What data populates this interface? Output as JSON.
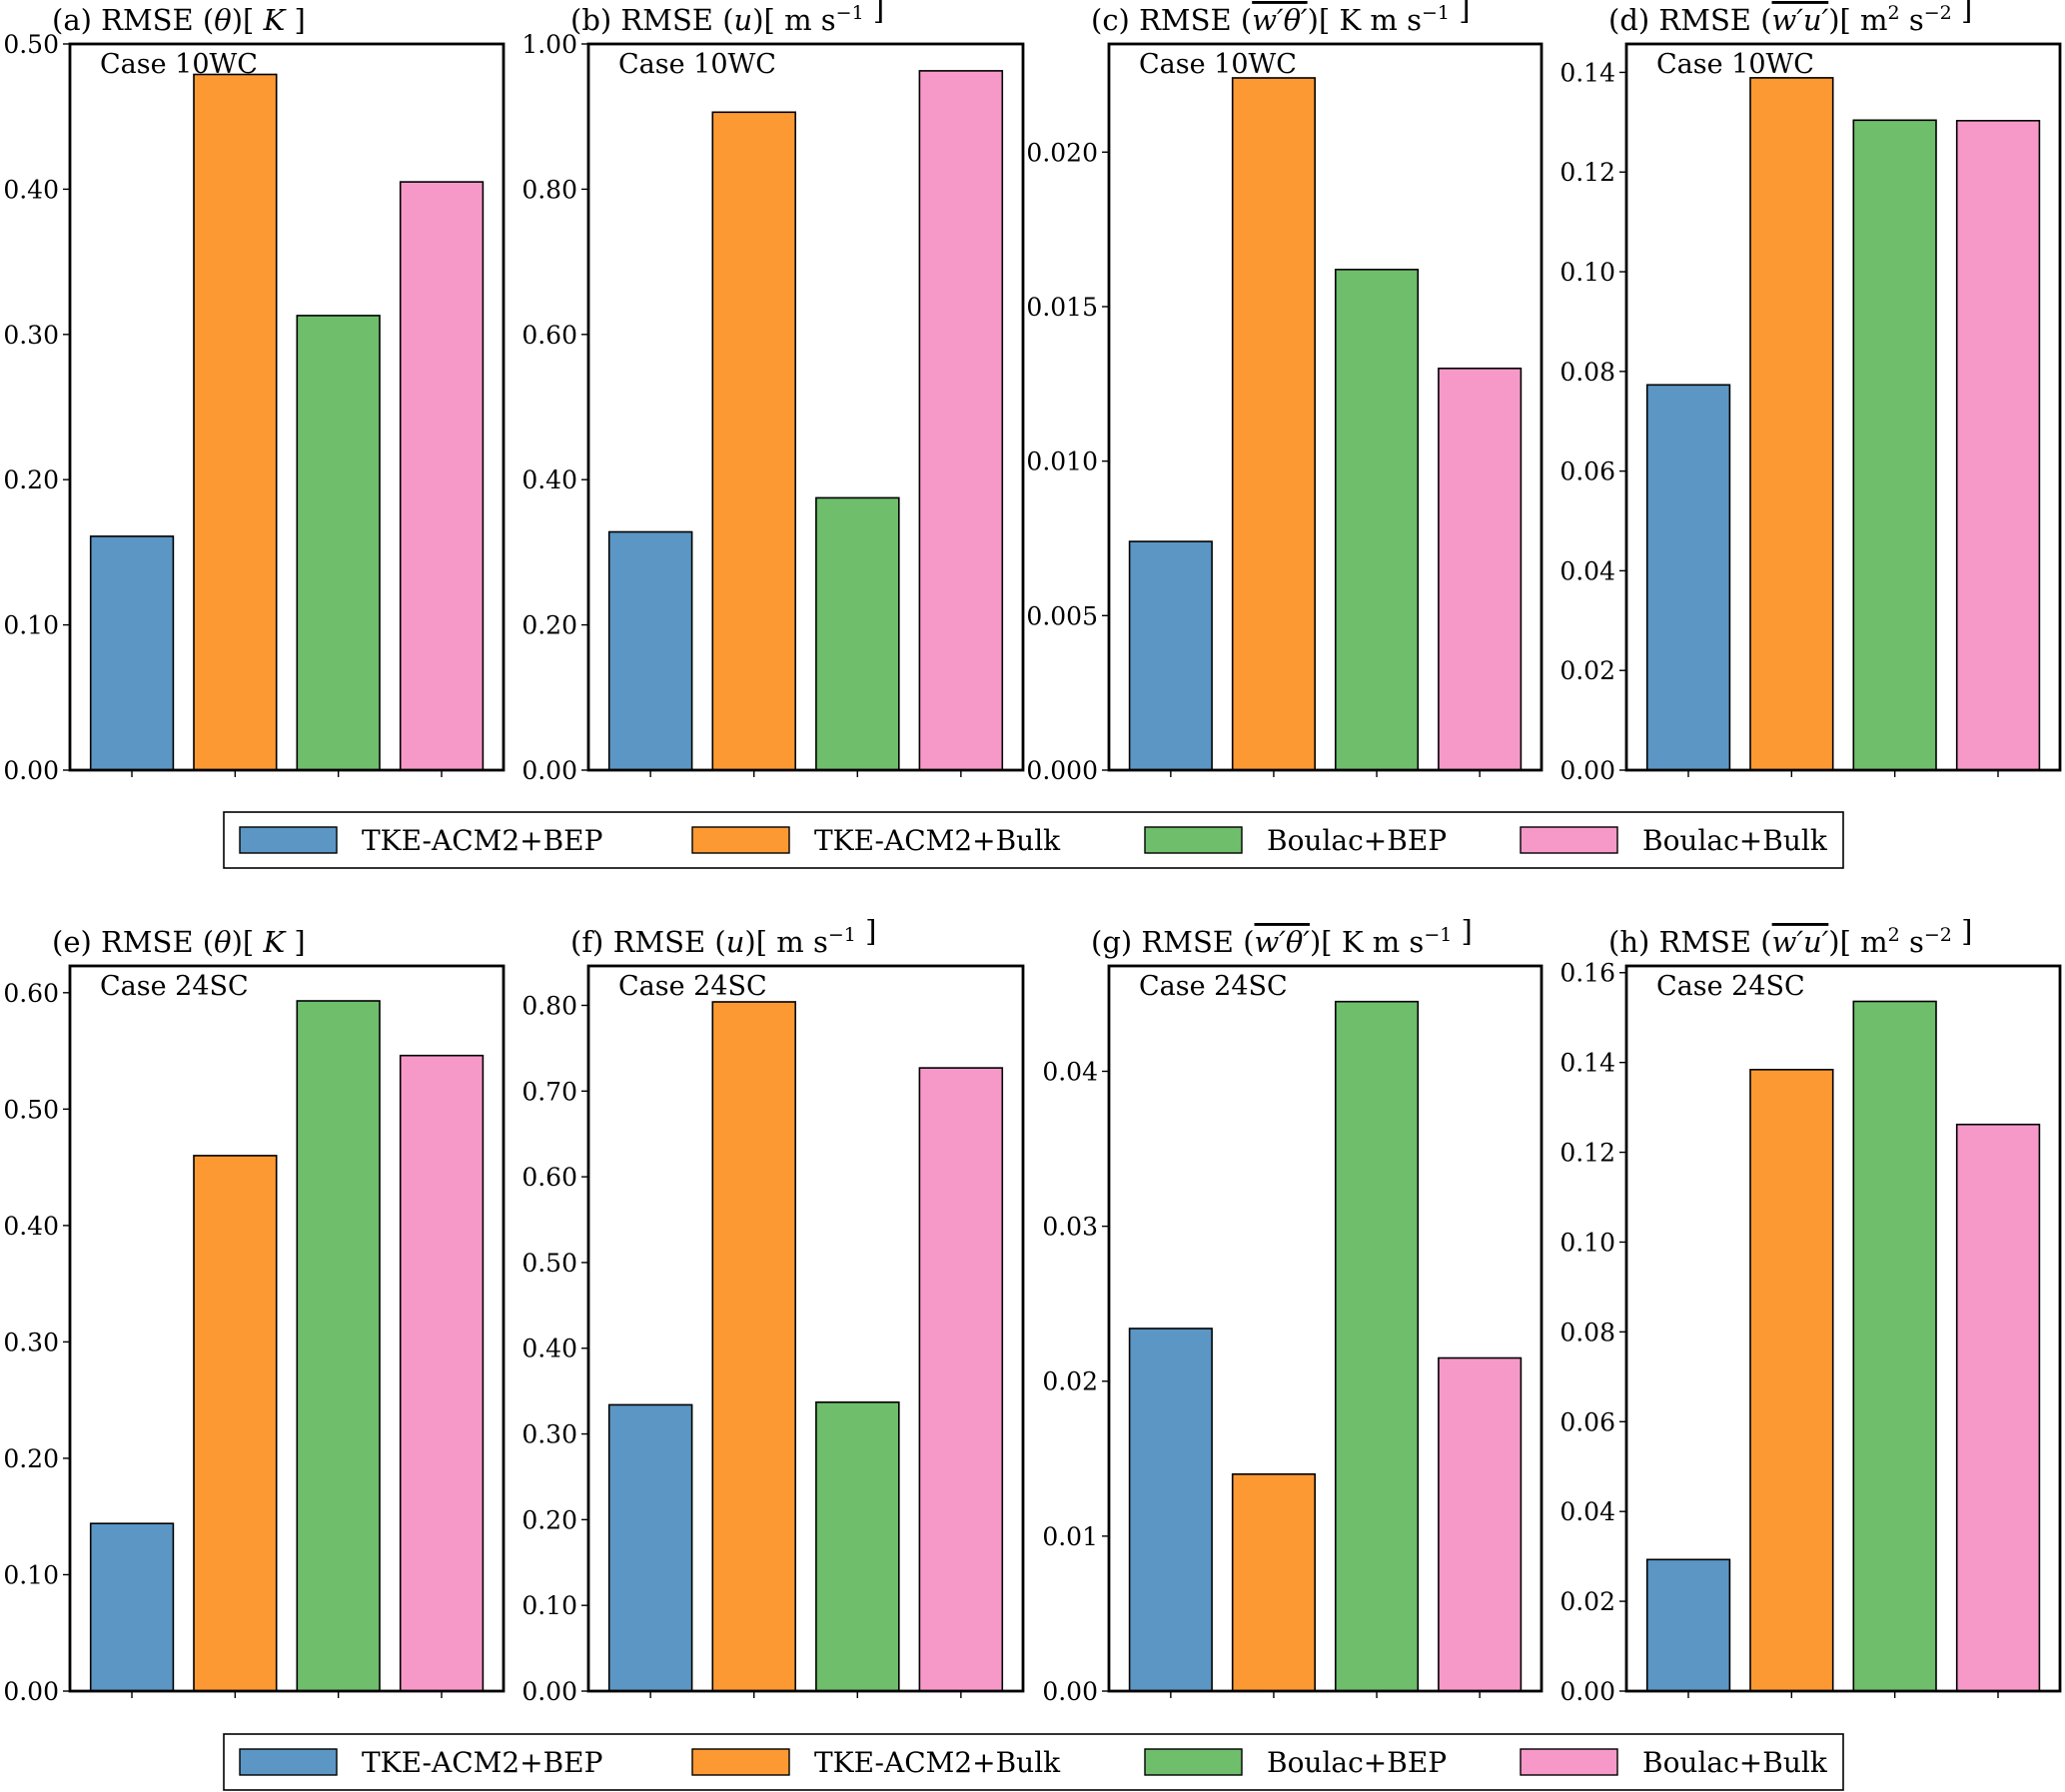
{
  "figure": {
    "legend_entries": [
      "TKE-ACM2+BEP",
      "TKE-ACM2+Bulk",
      "Boulac+BEP",
      "Boulac+Bulk"
    ],
    "colors": {
      "TKE-ACM2+BEP": "#5b96c4",
      "TKE-ACM2+Bulk": "#fd9932",
      "Boulac+BEP": "#6ebe6b",
      "Boulac+Bulk": "#f699c8"
    },
    "bar_edge_color": "#000000"
  },
  "chart_data": [
    {
      "type": "bar",
      "panel": "a",
      "case": "Case 10WC",
      "title": "(a) RMSE (θ)[ K ]",
      "title_parts": {
        "prefix": "(a) RMSE (",
        "var": "θ",
        "suffix": ")[ ",
        "unit": "K",
        "end": " ]",
        "overline": false
      },
      "categories": [
        "TKE-ACM2+BEP",
        "TKE-ACM2+Bulk",
        "Boulac+BEP",
        "Boulac+Bulk"
      ],
      "values": [
        0.161,
        0.479,
        0.313,
        0.405
      ],
      "ylim": [
        0,
        0.5
      ],
      "yticks": [
        0.0,
        0.1,
        0.2,
        0.3,
        0.4,
        0.5
      ],
      "ytick_labels": [
        "0.00",
        "0.10",
        "0.20",
        "0.30",
        "0.40",
        "0.50"
      ],
      "xlabel": "",
      "ylabel": "",
      "grid": false
    },
    {
      "type": "bar",
      "panel": "b",
      "case": "Case 10WC",
      "title": "(b) RMSE (u)[ m s⁻¹ ]",
      "title_parts": {
        "prefix": "(b) RMSE (",
        "var": "u",
        "suffix": ")[ ",
        "unit": "m s",
        "sup": "−1",
        "end": " ]",
        "overline": false
      },
      "categories": [
        "TKE-ACM2+BEP",
        "TKE-ACM2+Bulk",
        "Boulac+BEP",
        "Boulac+Bulk"
      ],
      "values": [
        0.328,
        0.906,
        0.375,
        0.963
      ],
      "ylim": [
        0,
        1.0
      ],
      "yticks": [
        0.0,
        0.2,
        0.4,
        0.6,
        0.8,
        1.0
      ],
      "ytick_labels": [
        "0.00",
        "0.20",
        "0.40",
        "0.60",
        "0.80",
        "1.00"
      ],
      "xlabel": "",
      "ylabel": "",
      "grid": false
    },
    {
      "type": "bar",
      "panel": "c",
      "case": "Case 10WC",
      "title": "(c) RMSE (w'θ')[ K m s⁻¹ ]",
      "title_parts": {
        "prefix": "(c) RMSE (",
        "var": "w′θ′",
        "suffix": ")[ ",
        "unit": "K m s",
        "sup": "−1",
        "end": " ]",
        "overline": true
      },
      "categories": [
        "TKE-ACM2+BEP",
        "TKE-ACM2+Bulk",
        "Boulac+BEP",
        "Boulac+Bulk"
      ],
      "values": [
        0.0074,
        0.0224,
        0.0162,
        0.013
      ],
      "ylim": [
        0,
        0.0235
      ],
      "yticks": [
        0.0,
        0.005,
        0.01,
        0.015,
        0.02
      ],
      "ytick_labels": [
        "0.000",
        "0.005",
        "0.010",
        "0.015",
        "0.020"
      ],
      "xlabel": "",
      "ylabel": "",
      "grid": false
    },
    {
      "type": "bar",
      "panel": "d",
      "case": "Case 10WC",
      "title": "(d) RMSE (w'u')[ m² s⁻² ]",
      "title_parts": {
        "prefix": "(d) RMSE (",
        "var": "w′u′",
        "suffix": ")[ ",
        "unit": "m",
        "sup1": "2",
        "unit2": " s",
        "sup": "−2",
        "end": " ]",
        "overline": true
      },
      "categories": [
        "TKE-ACM2+BEP",
        "TKE-ACM2+Bulk",
        "Boulac+BEP",
        "Boulac+Bulk"
      ],
      "values": [
        0.0773,
        0.1389,
        0.1304,
        0.1303
      ],
      "ylim": [
        0,
        0.1457
      ],
      "yticks": [
        0.0,
        0.02,
        0.04,
        0.06,
        0.08,
        0.1,
        0.12,
        0.14
      ],
      "ytick_labels": [
        "0.00",
        "0.02",
        "0.04",
        "0.06",
        "0.08",
        "0.10",
        "0.12",
        "0.14"
      ],
      "xlabel": "",
      "ylabel": "",
      "grid": false
    },
    {
      "type": "bar",
      "panel": "e",
      "case": "Case 24SC",
      "title": "(e) RMSE (θ)[ K ]",
      "title_parts": {
        "prefix": "(e) RMSE (",
        "var": "θ",
        "suffix": ")[ ",
        "unit": "K",
        "end": " ]",
        "overline": false
      },
      "categories": [
        "TKE-ACM2+BEP",
        "TKE-ACM2+Bulk",
        "Boulac+BEP",
        "Boulac+Bulk"
      ],
      "values": [
        0.144,
        0.46,
        0.593,
        0.546
      ],
      "ylim": [
        0,
        0.623
      ],
      "yticks": [
        0.0,
        0.1,
        0.2,
        0.3,
        0.4,
        0.5,
        0.6
      ],
      "ytick_labels": [
        "0.00",
        "0.10",
        "0.20",
        "0.30",
        "0.40",
        "0.50",
        "0.60"
      ],
      "xlabel": "",
      "ylabel": "",
      "grid": false
    },
    {
      "type": "bar",
      "panel": "f",
      "case": "Case 24SC",
      "title": "(f) RMSE (u)[ m s⁻¹ ]",
      "title_parts": {
        "prefix": "(f) RMSE (",
        "var": "u",
        "suffix": ")[ ",
        "unit": "m s",
        "sup": "−1",
        "end": " ]",
        "overline": false
      },
      "categories": [
        "TKE-ACM2+BEP",
        "TKE-ACM2+Bulk",
        "Boulac+BEP",
        "Boulac+Bulk"
      ],
      "values": [
        0.334,
        0.804,
        0.337,
        0.727
      ],
      "ylim": [
        0,
        0.846
      ],
      "yticks": [
        0.0,
        0.1,
        0.2,
        0.3,
        0.4,
        0.5,
        0.6,
        0.7,
        0.8
      ],
      "ytick_labels": [
        "0.00",
        "0.10",
        "0.20",
        "0.30",
        "0.40",
        "0.50",
        "0.60",
        "0.70",
        "0.80"
      ],
      "xlabel": "",
      "ylabel": "",
      "grid": false
    },
    {
      "type": "bar",
      "panel": "g",
      "case": "Case 24SC",
      "title": "(g) RMSE (w'θ')[ K m s⁻¹ ]",
      "title_parts": {
        "prefix": "(g) RMSE (",
        "var": "w′θ′",
        "suffix": ")[ ",
        "unit": "K m s",
        "sup": "−1",
        "end": " ]",
        "overline": true
      },
      "categories": [
        "TKE-ACM2+BEP",
        "TKE-ACM2+Bulk",
        "Boulac+BEP",
        "Boulac+Bulk"
      ],
      "values": [
        0.0234,
        0.014,
        0.0445,
        0.0215
      ],
      "ylim": [
        0,
        0.0468
      ],
      "yticks": [
        0.0,
        0.01,
        0.02,
        0.03,
        0.04
      ],
      "ytick_labels": [
        "0.00",
        "0.01",
        "0.02",
        "0.03",
        "0.04"
      ],
      "xlabel": "",
      "ylabel": "",
      "grid": false
    },
    {
      "type": "bar",
      "panel": "h",
      "case": "Case 24SC",
      "title": "(h) RMSE (w'u')[ m² s⁻² ]",
      "title_parts": {
        "prefix": "(h) RMSE (",
        "var": "w′u′",
        "suffix": ")[ ",
        "unit": "m",
        "sup1": "2",
        "unit2": " s",
        "sup": "−2",
        "end": " ]",
        "overline": true
      },
      "categories": [
        "TKE-ACM2+BEP",
        "TKE-ACM2+Bulk",
        "Boulac+BEP",
        "Boulac+Bulk"
      ],
      "values": [
        0.0293,
        0.1384,
        0.1536,
        0.1262
      ],
      "ylim": [
        0,
        0.1615
      ],
      "yticks": [
        0.0,
        0.02,
        0.04,
        0.06,
        0.08,
        0.1,
        0.12,
        0.14,
        0.16
      ],
      "ytick_labels": [
        "0.00",
        "0.02",
        "0.04",
        "0.06",
        "0.08",
        "0.10",
        "0.12",
        "0.14",
        "0.16"
      ],
      "xlabel": "",
      "ylabel": "",
      "grid": false
    }
  ]
}
